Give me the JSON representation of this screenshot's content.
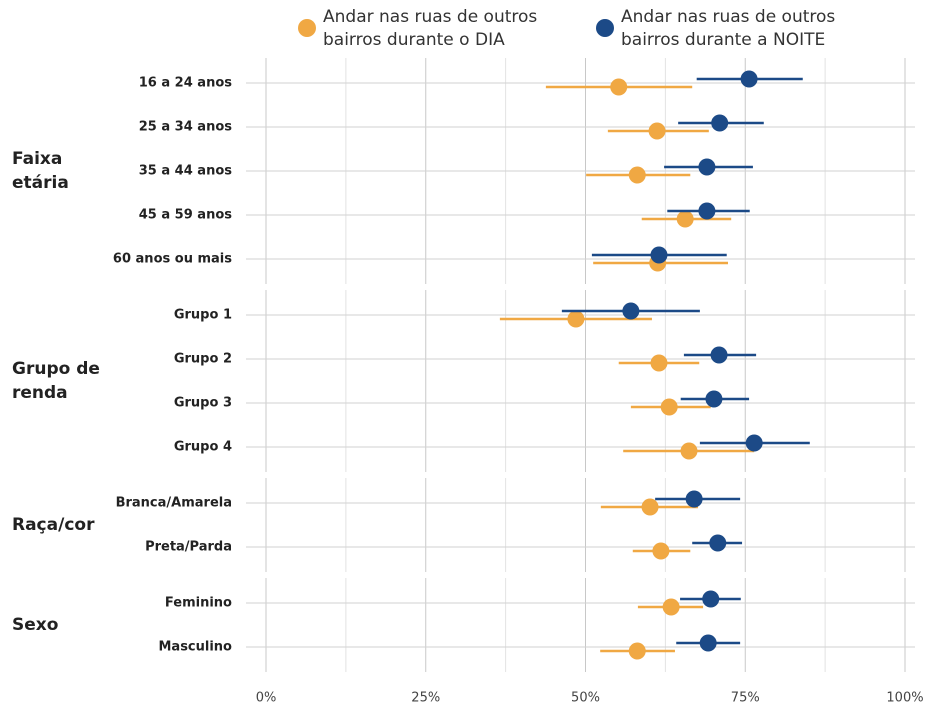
{
  "chart_data": {
    "type": "dot-range",
    "series": [
      {
        "name": [
          "Andar nas ruas de outros",
          "bairros durante o DIA"
        ],
        "color": "#f0a843"
      },
      {
        "name": [
          "Andar nas ruas de outros",
          "bairros durante a NOITE"
        ],
        "color": "#1c4a87"
      }
    ],
    "xlim": [
      0,
      100
    ],
    "xticks": [
      {
        "value": 0,
        "label": "0%"
      },
      {
        "value": 25,
        "label": "25%"
      },
      {
        "value": 50,
        "label": "50%"
      },
      {
        "value": 75,
        "label": "75%"
      },
      {
        "value": 100,
        "label": "100%"
      }
    ],
    "x_minor_ticks": [
      12.5,
      37.5,
      62.5,
      87.5
    ],
    "grid": true,
    "panels": [
      {
        "label": [
          "Faixa",
          "etária"
        ],
        "categories": [
          "16 a 24 anos",
          "25 a 34 anos",
          "35 a 44 anos",
          "45 a 59 anos",
          "60 anos ou mais"
        ],
        "series": [
          {
            "values": [
              55.2,
              61.2,
              58.1,
              65.6,
              61.3
            ],
            "lower": [
              43.8,
              53.5,
              50.1,
              58.8,
              51.2
            ],
            "upper": [
              66.7,
              69.3,
              66.4,
              72.8,
              72.3
            ]
          },
          {
            "values": [
              75.6,
              71.0,
              69.0,
              69.0,
              61.5
            ],
            "lower": [
              67.4,
              64.5,
              62.3,
              62.8,
              51.0
            ],
            "upper": [
              84.0,
              77.9,
              76.2,
              75.7,
              72.1
            ]
          }
        ]
      },
      {
        "label": [
          "Grupo de",
          "renda"
        ],
        "categories": [
          "Grupo 1",
          "Grupo 2",
          "Grupo 3",
          "Grupo 4"
        ],
        "series": [
          {
            "values": [
              48.5,
              61.5,
              63.1,
              66.2
            ],
            "lower": [
              36.6,
              55.2,
              57.1,
              55.9
            ],
            "upper": [
              60.4,
              67.8,
              69.6,
              76.4
            ]
          },
          {
            "values": [
              57.1,
              70.9,
              70.1,
              76.4
            ],
            "lower": [
              46.3,
              65.4,
              64.9,
              67.9
            ],
            "upper": [
              67.9,
              76.7,
              75.6,
              85.1
            ]
          }
        ]
      },
      {
        "label": [
          "Raça/cor"
        ],
        "categories": [
          "Branca/Amarela",
          "Preta/Parda"
        ],
        "series": [
          {
            "values": [
              60.1,
              61.8
            ],
            "lower": [
              52.4,
              57.4
            ],
            "upper": [
              67.6,
              66.4
            ]
          },
          {
            "values": [
              67.0,
              70.7
            ],
            "lower": [
              60.9,
              66.7
            ],
            "upper": [
              74.2,
              74.5
            ]
          }
        ]
      },
      {
        "label": [
          "Sexo"
        ],
        "categories": [
          "Feminino",
          "Masculino"
        ],
        "series": [
          {
            "values": [
              63.4,
              58.1
            ],
            "lower": [
              58.2,
              52.3
            ],
            "upper": [
              68.4,
              64.0
            ]
          },
          {
            "values": [
              69.6,
              69.2
            ],
            "lower": [
              64.8,
              64.2
            ],
            "upper": [
              74.3,
              74.2
            ]
          }
        ]
      }
    ]
  }
}
